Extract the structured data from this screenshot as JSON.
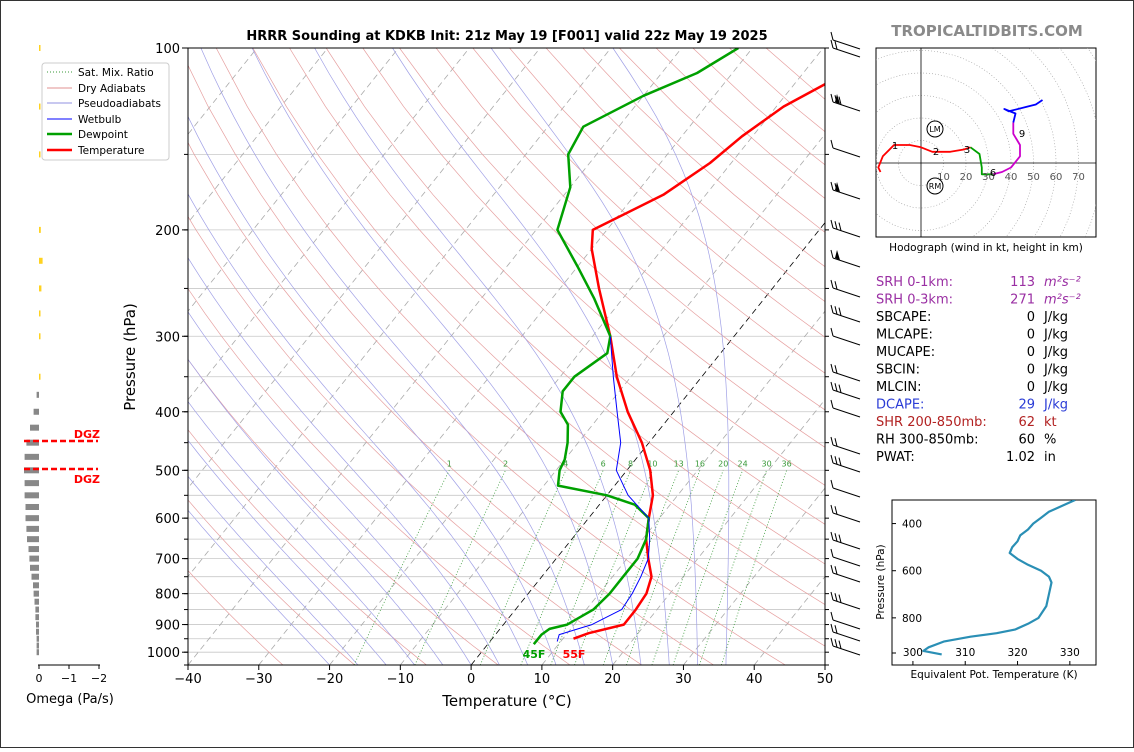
{
  "title": "HRRR Sounding at KDKB Init: 21z May 19 [F001] valid 22z May 19 2025",
  "brand": "TROPICALTIDBITS.COM",
  "skewt": {
    "xlabel": "Temperature (°C)",
    "ylabel": "Pressure (hPa)",
    "x_ticks": [
      -40,
      -30,
      -20,
      -10,
      0,
      10,
      20,
      30,
      40,
      50
    ],
    "x_tick_labels": [
      "−40",
      "−30",
      "−20",
      "−10",
      "0",
      "10",
      "20",
      "30",
      "40",
      "50"
    ],
    "y_ticks": [
      100,
      200,
      300,
      400,
      500,
      600,
      700,
      800,
      900,
      1000
    ],
    "legend": [
      "Sat. Mix. Ratio",
      "Dry Adiabats",
      "Pseudoadiabats",
      "Wetbulb",
      "Dewpoint",
      "Temperature"
    ],
    "mixing_ratio_labels": [
      "1",
      "2",
      "4",
      "6",
      "8",
      "10",
      "13",
      "16",
      "20",
      "24",
      "30",
      "36"
    ],
    "surface_temp_label": "55F",
    "surface_dew_label": "45F"
  },
  "omega": {
    "xlabel": "Omega (Pa/s)",
    "ticks": [
      "0",
      "−1",
      "−2"
    ],
    "dgz_label": "DGZ"
  },
  "hodograph": {
    "caption": "Hodograph (wind in kt, height in km)",
    "ring_labels": [
      "10",
      "20",
      "30",
      "40",
      "50",
      "60",
      "70"
    ],
    "height_labels": [
      "1",
      "2",
      "3",
      "6",
      "9"
    ],
    "markers": [
      "LM",
      "RM"
    ]
  },
  "params": [
    {
      "label": "SRH 0-1km:",
      "value": "113",
      "unit": "m²s⁻²",
      "color": "#9a2fa3"
    },
    {
      "label": "SRH 0-3km:",
      "value": "271",
      "unit": "m²s⁻²",
      "color": "#9a2fa3"
    },
    {
      "label": "SBCAPE:",
      "value": "0",
      "unit": "J/kg",
      "color": "#000000"
    },
    {
      "label": "MLCAPE:",
      "value": "0",
      "unit": "J/kg",
      "color": "#000000"
    },
    {
      "label": "MUCAPE:",
      "value": "0",
      "unit": "J/kg",
      "color": "#000000"
    },
    {
      "label": "SBCIN:",
      "value": "0",
      "unit": "J/kg",
      "color": "#000000"
    },
    {
      "label": "MLCIN:",
      "value": "0",
      "unit": "J/kg",
      "color": "#000000"
    },
    {
      "label": "DCAPE:",
      "value": "29",
      "unit": "J/kg",
      "color": "#2a3cd6"
    },
    {
      "label": "SHR 200-850mb:",
      "value": "62",
      "unit": "kt",
      "color": "#b22222"
    },
    {
      "label": "RH 300-850mb:",
      "value": "60",
      "unit": "%",
      "color": "#000000"
    },
    {
      "label": "PWAT:",
      "value": "1.02",
      "unit": "in",
      "color": "#000000"
    }
  ],
  "theta_e": {
    "xlabel": "Equivalent Pot. Temperature (K)",
    "ylabel": "Pressure (hPa)",
    "x_ticks": [
      "300",
      "310",
      "320",
      "330"
    ],
    "y_ticks": [
      "400",
      "600",
      "800"
    ]
  },
  "chart_data": [
    {
      "type": "line",
      "title": "HRRR Sounding at KDKB Init: 21z May 19 [F001] valid 22z May 19 2025",
      "xlabel": "Temperature (°C)",
      "ylabel": "Pressure (hPa)",
      "xlim": [
        -40,
        50
      ],
      "ylim": [
        1050,
        100
      ],
      "yscale": "log",
      "skew": true,
      "series": [
        {
          "name": "Temperature",
          "color": "#ff0000",
          "points": [
            [
              950,
              11.5
            ],
            [
              930,
              13
            ],
            [
              900,
              17
            ],
            [
              850,
              17
            ],
            [
              800,
              16.7
            ],
            [
              750,
              15.5
            ],
            [
              700,
              13
            ],
            [
              650,
              10.5
            ],
            [
              600,
              8.5
            ],
            [
              550,
              6.5
            ],
            [
              500,
              3.3
            ],
            [
              450,
              -1
            ],
            [
              400,
              -6.5
            ],
            [
              350,
              -12
            ],
            [
              300,
              -17.5
            ],
            [
              250,
              -24.5
            ],
            [
              215,
              -30
            ],
            [
              200,
              -32
            ],
            [
              175,
              -26
            ],
            [
              155,
              -23
            ],
            [
              140,
              -21.5
            ],
            [
              125,
              -19
            ],
            [
              110,
              -14
            ],
            [
              100,
              -10
            ]
          ]
        },
        {
          "name": "Dewpoint",
          "color": "#00a000",
          "points": [
            [
              970,
              6.5
            ],
            [
              935,
              6.5
            ],
            [
              915,
              7
            ],
            [
              900,
              9
            ],
            [
              850,
              11
            ],
            [
              800,
              11.5
            ],
            [
              750,
              11.5
            ],
            [
              700,
              11.5
            ],
            [
              650,
              10.5
            ],
            [
              600,
              8.5
            ],
            [
              570,
              5
            ],
            [
              550,
              0
            ],
            [
              530,
              -8
            ],
            [
              500,
              -9.5
            ],
            [
              480,
              -10
            ],
            [
              450,
              -11.5
            ],
            [
              420,
              -13.5
            ],
            [
              400,
              -16
            ],
            [
              370,
              -18
            ],
            [
              350,
              -18
            ],
            [
              320,
              -16
            ],
            [
              300,
              -17.5
            ],
            [
              260,
              -24
            ],
            [
              230,
              -30
            ],
            [
              200,
              -37
            ],
            [
              170,
              -40
            ],
            [
              150,
              -44
            ],
            [
              135,
              -45
            ],
            [
              120,
              -40
            ],
            [
              110,
              -35
            ],
            [
              100,
              -32
            ]
          ]
        },
        {
          "name": "Wetbulb",
          "color": "#0000ff",
          "points": [
            [
              960,
              9.5
            ],
            [
              935,
              9
            ],
            [
              915,
              11
            ],
            [
              900,
              12.5
            ],
            [
              850,
              15
            ],
            [
              800,
              14.7
            ],
            [
              750,
              14
            ],
            [
              700,
              13
            ],
            [
              650,
              11
            ],
            [
              600,
              8.5
            ],
            [
              550,
              3
            ],
            [
              500,
              -1.5
            ],
            [
              450,
              -4
            ],
            [
              400,
              -8
            ],
            [
              350,
              -12.5
            ],
            [
              300,
              -17.5
            ]
          ]
        }
      ]
    },
    {
      "type": "bar",
      "title": "",
      "xlabel": "Omega (Pa/s)",
      "ylabel": "",
      "orientation": "horizontal",
      "categories_pressure": [
        1000,
        975,
        950,
        925,
        900,
        875,
        850,
        825,
        800,
        775,
        750,
        725,
        700,
        675,
        650,
        625,
        600,
        575,
        550,
        525,
        500,
        475,
        450,
        425,
        400,
        375,
        350,
        300,
        275,
        250,
        225,
        200,
        150,
        125,
        100
      ],
      "values": [
        0.08,
        0.08,
        0.08,
        0.1,
        0.1,
        0.12,
        0.12,
        0.15,
        0.18,
        0.2,
        0.25,
        0.3,
        0.32,
        0.35,
        0.4,
        0.42,
        0.45,
        0.45,
        0.48,
        0.48,
        0.5,
        0.48,
        0.42,
        0.3,
        0.18,
        0.08,
        -0.04,
        -0.04,
        -0.05,
        -0.08,
        -0.12,
        -0.06,
        -0.03,
        -0.03,
        -0.03
      ],
      "xlim": [
        0,
        -2
      ],
      "dgz_pressures": [
        460,
        500
      ]
    },
    {
      "type": "line",
      "title": "",
      "xlabel": "",
      "ylabel": "",
      "xlim": [
        -20,
        80
      ],
      "ylim": [
        -32,
        50
      ],
      "series": [
        {
          "name": "0-3 km",
          "color": "#ff0000",
          "points": [
            [
              -18,
              -4
            ],
            [
              -19,
              -2
            ],
            [
              -17,
              3
            ],
            [
              -12,
              8
            ],
            [
              -5,
              8
            ],
            [
              0,
              7
            ],
            [
              5,
              5
            ],
            [
              13,
              5
            ],
            [
              19,
              6
            ],
            [
              22,
              7
            ]
          ]
        },
        {
          "name": "3-6 km",
          "color": "#00a000",
          "points": [
            [
              22,
              7
            ],
            [
              26,
              4
            ],
            [
              27,
              -2
            ],
            [
              27,
              -5
            ],
            [
              32,
              -5
            ]
          ]
        },
        {
          "name": "6-9 km",
          "color": "#cc00cc",
          "points": [
            [
              32,
              -5
            ],
            [
              36,
              -4
            ],
            [
              40,
              -2
            ],
            [
              44,
              3
            ],
            [
              44,
              8
            ],
            [
              41,
              13
            ],
            [
              41,
              18
            ]
          ]
        },
        {
          "name": "9+ km",
          "color": "#0000ff",
          "points": [
            [
              41,
              18
            ],
            [
              42,
              22
            ],
            [
              37,
              24
            ],
            [
              39,
              23
            ],
            [
              47,
              25
            ],
            [
              51,
              26
            ],
            [
              54,
              28
            ]
          ]
        }
      ],
      "markers": [
        {
          "label": "LM",
          "u": 6,
          "v": 16
        },
        {
          "label": "RM",
          "u": 6,
          "v": -11
        }
      ]
    },
    {
      "type": "line",
      "title": "",
      "xlabel": "Equivalent Pot. Temperature (K)",
      "ylabel": "Pressure (hPa)",
      "xlim": [
        296,
        335
      ],
      "ylim": [
        1000,
        300
      ],
      "series": [
        {
          "name": "Theta-e",
          "color": "#2a8fb5",
          "points": [
            [
              305.5,
              955
            ],
            [
              302,
              940
            ],
            [
              303,
              925
            ],
            [
              306,
              900
            ],
            [
              311,
              880
            ],
            [
              316,
              865
            ],
            [
              319.5,
              850
            ],
            [
              322,
              825
            ],
            [
              324,
              800
            ],
            [
              325.5,
              750
            ],
            [
              326,
              700
            ],
            [
              326.5,
              650
            ],
            [
              326,
              625
            ],
            [
              324.5,
              600
            ],
            [
              322,
              575
            ],
            [
              320,
              550
            ],
            [
              318.5,
              525
            ],
            [
              319,
              500
            ],
            [
              320,
              475
            ],
            [
              320.5,
              450
            ],
            [
              322,
              425
            ],
            [
              323,
              400
            ],
            [
              324.5,
              375
            ],
            [
              326,
              350
            ],
            [
              328.5,
              325
            ],
            [
              331,
              300
            ]
          ]
        }
      ]
    }
  ]
}
